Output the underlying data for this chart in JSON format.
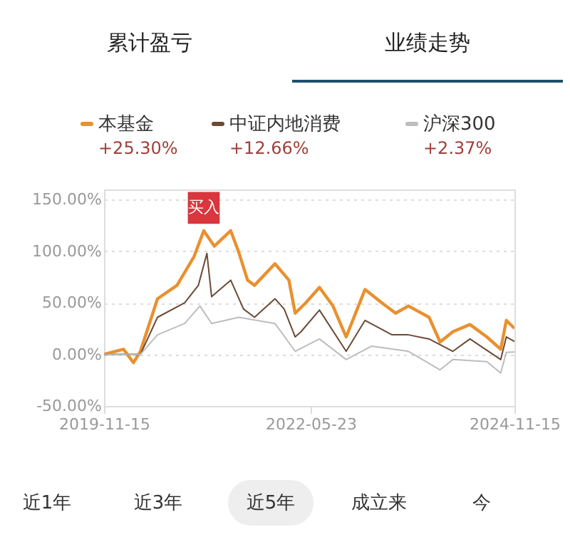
{
  "chart_data": {
    "type": "line",
    "xlim": [
      "2019-11-15",
      "2024-11-15"
    ],
    "xticks": [
      "2019-11-15",
      "2022-05-23",
      "2024-11-15"
    ],
    "ylim": [
      -50,
      160
    ],
    "yticks": [
      {
        "value": -50,
        "label": "-50.00%"
      },
      {
        "value": 0,
        "label": "0.00%"
      },
      {
        "value": 50,
        "label": "50.00%"
      },
      {
        "value": 100,
        "label": "100.00%"
      },
      {
        "value": 150,
        "label": "150.00%"
      }
    ],
    "grid": "y",
    "legend": "top",
    "marker": "none",
    "line_style": "solid",
    "series": [
      {
        "name": "本基金",
        "color": "#e8912f",
        "x": [
          "2019-11-15",
          "2020-02-10",
          "2020-03-25",
          "2020-04-25",
          "2020-07-10",
          "2020-10-05",
          "2020-12-20",
          "2021-02-01",
          "2021-03-20",
          "2021-06-01",
          "2021-07-07",
          "2021-08-15",
          "2021-09-15",
          "2021-12-15",
          "2022-02-15",
          "2022-03-15",
          "2022-05-01",
          "2022-07-01",
          "2022-08-30",
          "2022-10-28",
          "2023-01-20",
          "2023-04-05",
          "2023-06-05",
          "2023-08-01",
          "2023-11-01",
          "2023-12-20",
          "2024-02-15",
          "2024-05-01",
          "2024-07-15",
          "2024-09-15",
          "2024-10-10",
          "2024-11-15"
        ],
        "values": [
          0,
          5,
          -8,
          3,
          54,
          67,
          95,
          120,
          105,
          120,
          99,
          72,
          67,
          88,
          72,
          40,
          50,
          65,
          47,
          17,
          63,
          50,
          40,
          47,
          36,
          12,
          22,
          29,
          17,
          5,
          33,
          25.3
        ]
      },
      {
        "name": "中证内地消费",
        "color": "#6b4a35",
        "x": [
          "2019-11-15",
          "2020-04-25",
          "2020-07-10",
          "2020-11-08",
          "2021-01-08",
          "2021-02-15",
          "2021-03-08",
          "2021-06-01",
          "2021-07-28",
          "2021-09-15",
          "2021-12-15",
          "2022-01-25",
          "2022-03-15",
          "2022-04-10",
          "2022-07-01",
          "2022-10-28",
          "2023-01-20",
          "2023-05-20",
          "2023-08-01",
          "2023-11-01",
          "2024-02-15",
          "2024-05-01",
          "2024-09-15",
          "2024-10-10",
          "2024-11-15"
        ],
        "values": [
          0,
          0,
          36,
          50,
          67,
          98,
          56,
          72,
          44,
          36,
          54,
          44,
          17,
          22,
          43,
          3,
          33,
          19,
          19,
          15,
          3,
          15,
          -5,
          17,
          12.66
        ]
      },
      {
        "name": "沪深300",
        "color": "#bdbdbd",
        "x": [
          "2019-11-15",
          "2020-04-25",
          "2020-07-10",
          "2020-11-08",
          "2021-01-15",
          "2021-03-08",
          "2021-07-07",
          "2021-12-15",
          "2022-03-15",
          "2022-07-01",
          "2022-10-28",
          "2023-02-18",
          "2023-08-01",
          "2023-12-20",
          "2024-02-15",
          "2024-07-15",
          "2024-09-15",
          "2024-10-10",
          "2024-11-15"
        ],
        "values": [
          0,
          0,
          19,
          30,
          47,
          30,
          36,
          30,
          3,
          15,
          -5,
          8,
          3,
          -15,
          -5,
          -7,
          -18,
          2,
          2.37
        ]
      }
    ],
    "annotations": [
      {
        "text": "买入",
        "x": "2021-02-01",
        "y": 120
      },
      "累计盈亏",
      "业绩走势",
      "+25.30%",
      "+12.66%",
      "+2.37%",
      "近1年",
      "近3年",
      "近5年",
      "成立来",
      "今"
    ]
  }
}
